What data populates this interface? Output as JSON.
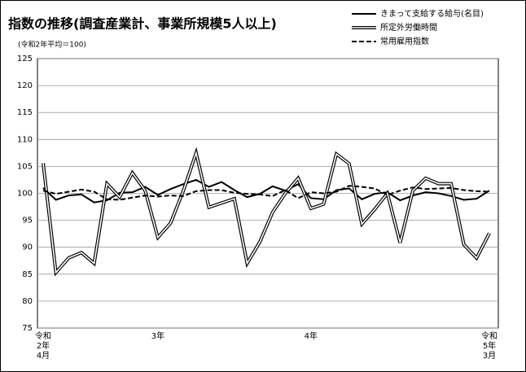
{
  "chart_data": {
    "type": "line",
    "title": "指数の推移(調査産業計、事業所規模5人以上)",
    "subtitle": "(令和2年平均＝100)",
    "categories": [
      "令和\n2年\n4月",
      null,
      null,
      null,
      null,
      null,
      null,
      null,
      null,
      "3年",
      null,
      null,
      null,
      null,
      null,
      null,
      null,
      null,
      null,
      null,
      null,
      "4年",
      null,
      null,
      null,
      null,
      null,
      null,
      null,
      null,
      null,
      null,
      null,
      null,
      null,
      "令和\n5年\n3月"
    ],
    "series": [
      {
        "name": "きまって支給する給与(名目)",
        "color": "#000000",
        "line_style": "solid",
        "values": [
          101,
          98.8,
          99.6,
          99.8,
          98.3,
          98.7,
          100.1,
          100.2,
          101.2,
          99.7,
          100.8,
          101.7,
          102.5,
          101.2,
          102.1,
          100.6,
          99.3,
          99.9,
          101.3,
          100.5,
          101.7,
          99.1,
          98.9,
          100.6,
          100.9,
          98.9,
          99.9,
          100.2,
          98.7,
          99.6,
          100.2,
          100,
          99.5,
          98.8,
          99,
          100.5
        ]
      },
      {
        "name": "所定外労働時間",
        "color": "#000000",
        "line_style": "double",
        "values": [
          105.6,
          85.3,
          88,
          89,
          87,
          101.8,
          99.3,
          103.8,
          100.5,
          91.8,
          94.5,
          100.5,
          107.5,
          97.4,
          98.2,
          99,
          87,
          91,
          96.5,
          100,
          102.8,
          97.2,
          98,
          107.3,
          105.5,
          94.3,
          97,
          100,
          90.8,
          100.5,
          102.8,
          101.8,
          101.8,
          90.5,
          88,
          92.6
        ]
      },
      {
        "name": "常用雇用指数",
        "color": "#000000",
        "line_style": "dashed",
        "values": [
          100.5,
          99.9,
          100.3,
          100.7,
          100.3,
          98.9,
          98.8,
          99.2,
          99.6,
          99.4,
          99.6,
          99.5,
          100.4,
          100.6,
          100.6,
          100.1,
          99.9,
          99.8,
          99.5,
          100.6,
          99.1,
          100.2,
          100,
          100.3,
          101.4,
          101.2,
          100.9,
          99.7,
          100.5,
          101.1,
          100.8,
          100.9,
          101,
          100.6,
          100.4,
          100.3
        ]
      }
    ],
    "ylim": [
      75,
      125
    ],
    "yticks": [
      75,
      80,
      85,
      90,
      95,
      100,
      105,
      110,
      115,
      120,
      125
    ],
    "grid": true
  }
}
